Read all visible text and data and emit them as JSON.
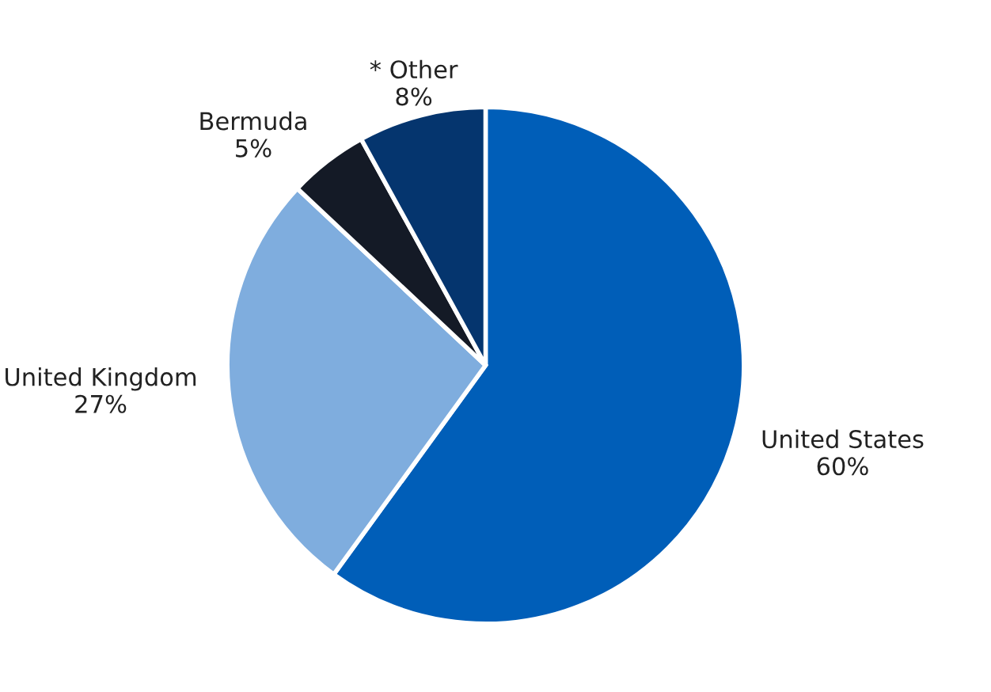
{
  "chart_data": {
    "type": "pie",
    "categories": [
      "United States",
      "United Kingdom",
      "Bermuda",
      "* Other"
    ],
    "values": [
      60,
      27,
      5,
      8
    ],
    "colors": [
      "#005eb8",
      "#7fadde",
      "#141a26",
      "#05356e"
    ],
    "value_labels": [
      "60%",
      "27%",
      "5%",
      "8%"
    ]
  }
}
